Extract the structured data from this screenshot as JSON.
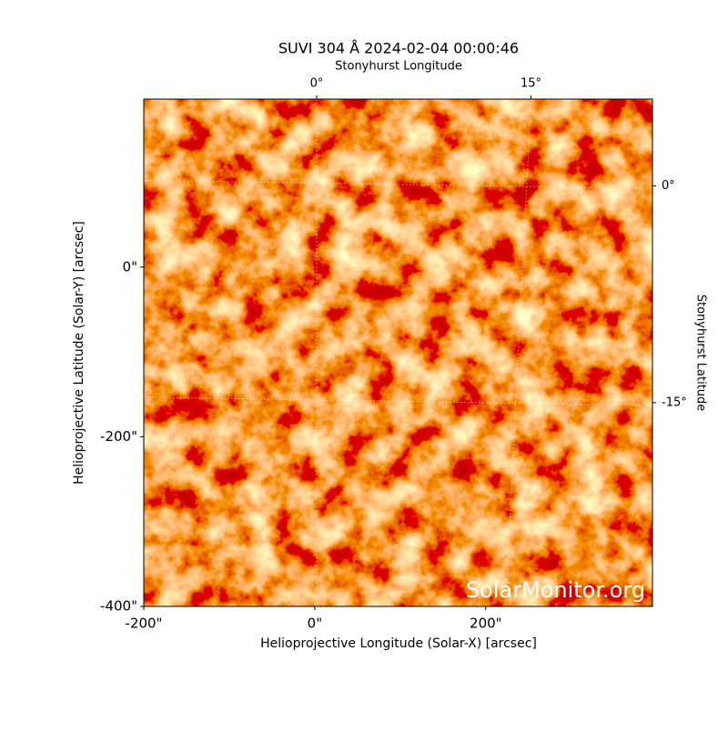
{
  "chart_data": {
    "type": "image",
    "title": "SUVI 304 Å 2024-02-04 00:00:46",
    "xlabel": "Helioprojective Longitude (Solar-X) [arcsec]",
    "ylabel": "Helioprojective Latitude (Solar-Y) [arcsec]",
    "x2label": "Stonyhurst Longitude",
    "y2label": "Stonyhurst Latitude",
    "xlim": [
      -200,
      395
    ],
    "ylim": [
      -400,
      198
    ],
    "xticks": [
      {
        "value": -200,
        "label": "-200\""
      },
      {
        "value": 0,
        "label": "0\""
      },
      {
        "value": 200,
        "label": "200\""
      }
    ],
    "yticks": [
      {
        "value": -400,
        "label": "-400\""
      },
      {
        "value": -200,
        "label": "-200\""
      },
      {
        "value": 0,
        "label": "0\""
      }
    ],
    "x2lim": [
      -12.1,
      23.5
    ],
    "x2ticks": [
      {
        "value": 0,
        "label": "0°"
      },
      {
        "value": 15,
        "label": "15°"
      }
    ],
    "y2lim": [
      -29.1,
      6
    ],
    "y2ticks": [
      {
        "value": 0,
        "label": "0°"
      },
      {
        "value": -15,
        "label": "-15°"
      }
    ],
    "grid": true,
    "watermark": "SolarMonitor.org"
  }
}
